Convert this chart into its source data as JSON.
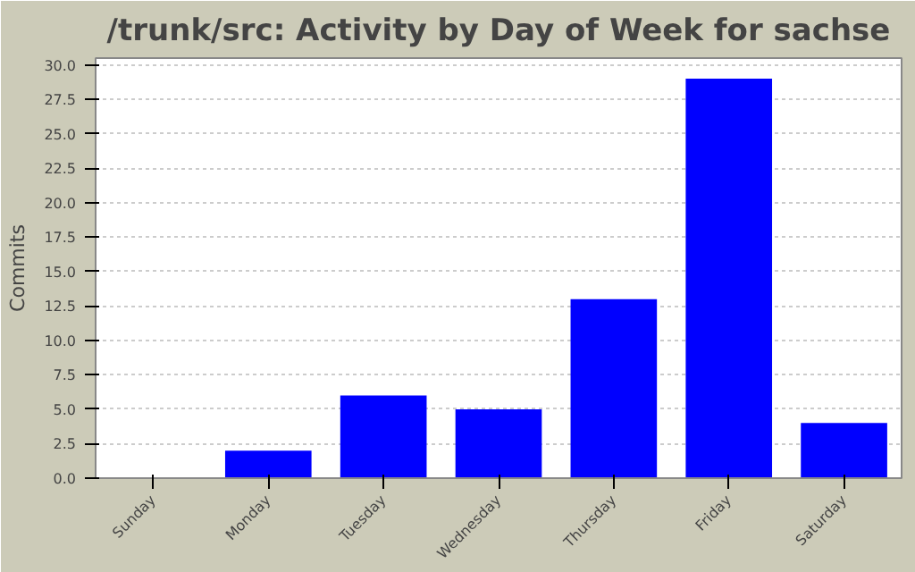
{
  "chart_data": {
    "type": "bar",
    "title": "/trunk/src: Activity by Day of Week for sachse",
    "ylabel": "Commits",
    "categories": [
      "Sunday",
      "Monday",
      "Tuesday",
      "Wednesday",
      "Thursday",
      "Friday",
      "Saturday"
    ],
    "values": [
      0,
      2,
      6,
      5,
      13,
      29,
      4
    ],
    "color": "#0000ff",
    "ylim": [
      0,
      30.5
    ],
    "yticks": [
      {
        "value": 0,
        "label": "0.0"
      },
      {
        "value": 2.5,
        "label": "2.5"
      },
      {
        "value": 5,
        "label": "5.0"
      },
      {
        "value": 7.5,
        "label": "7.5"
      },
      {
        "value": 10,
        "label": "10.0"
      },
      {
        "value": 12.5,
        "label": "12.5"
      },
      {
        "value": 15,
        "label": "15.0"
      },
      {
        "value": 17.5,
        "label": "17.5"
      },
      {
        "value": 20,
        "label": "20.0"
      },
      {
        "value": 22.5,
        "label": "22.5"
      },
      {
        "value": 25,
        "label": "25.0"
      },
      {
        "value": 27.5,
        "label": "27.5"
      },
      {
        "value": 30,
        "label": "30.0"
      }
    ],
    "grid": "y"
  }
}
